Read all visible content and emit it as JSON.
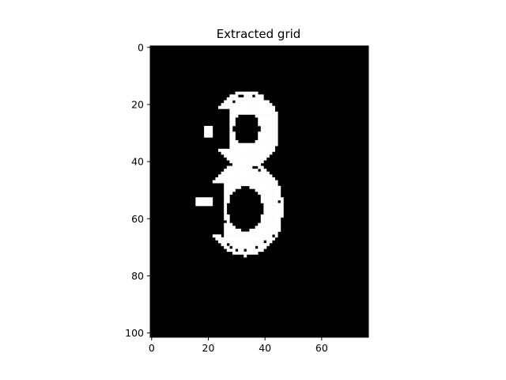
{
  "chart_data": {
    "type": "heatmap",
    "title": "Extracted grid",
    "xlabel": "",
    "ylabel": "",
    "grid": false,
    "cols": 77,
    "rows": 102,
    "xlim": [
      -0.5,
      76.5
    ],
    "ylim": [
      101.5,
      -0.5
    ],
    "y_inverted": true,
    "xticks": [
      0,
      20,
      40,
      60
    ],
    "yticks": [
      0,
      20,
      40,
      60,
      80,
      100
    ],
    "colormap": {
      "0": "#000000",
      "1": "#ffffff"
    },
    "foreground_value": 1,
    "digit_shown": "3",
    "segments": [
      {
        "type": "ellipse_ring",
        "cx": 33.5,
        "cy": 28.5,
        "rx": 11.5,
        "ry": 13.5,
        "thickness": 7.5
      },
      {
        "type": "ellipse_ring",
        "cx": 33.0,
        "cy": 56.5,
        "rx": 13.5,
        "ry": 16.5,
        "thickness": 8.0
      }
    ],
    "holes": [
      [
        31,
        17
      ],
      [
        32,
        17
      ],
      [
        36,
        17
      ],
      [
        40,
        18
      ],
      [
        41,
        18
      ],
      [
        29,
        16
      ],
      [
        45,
        24
      ],
      [
        46,
        25
      ],
      [
        45,
        27
      ],
      [
        36,
        42
      ],
      [
        37,
        42
      ],
      [
        38,
        43
      ],
      [
        42,
        44
      ],
      [
        43,
        44
      ],
      [
        46,
        46
      ],
      [
        47,
        50
      ],
      [
        48,
        52
      ],
      [
        45,
        54
      ],
      [
        47,
        57
      ],
      [
        46,
        60
      ],
      [
        48,
        63
      ],
      [
        27,
        58
      ],
      [
        26,
        61
      ],
      [
        25,
        66
      ],
      [
        27,
        69
      ],
      [
        28,
        70
      ],
      [
        30,
        71
      ],
      [
        33,
        71
      ],
      [
        37,
        70
      ],
      [
        40,
        68
      ],
      [
        43,
        66
      ],
      [
        29,
        19
      ],
      [
        23,
        20
      ]
    ]
  }
}
